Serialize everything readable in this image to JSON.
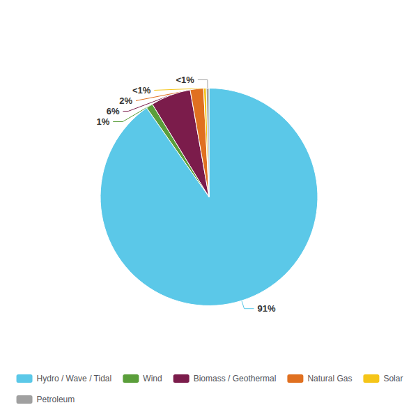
{
  "chart_data": {
    "type": "pie",
    "categories": [
      "Hydro / Wave / Tidal",
      "Wind",
      "Biomass / Geothermal",
      "Natural Gas",
      "Solar",
      "Petroleum"
    ],
    "values": [
      91,
      1,
      6,
      2,
      0.4,
      0.4
    ],
    "value_labels": [
      "91%",
      "1%",
      "6%",
      "2%",
      "<1%",
      "<1%"
    ],
    "colors": [
      "#5BC8E8",
      "#5A9E3A",
      "#7B1C4B",
      "#E07020",
      "#F5C518",
      "#A0A0A0"
    ],
    "data_labels": true,
    "legend": "bottom"
  }
}
